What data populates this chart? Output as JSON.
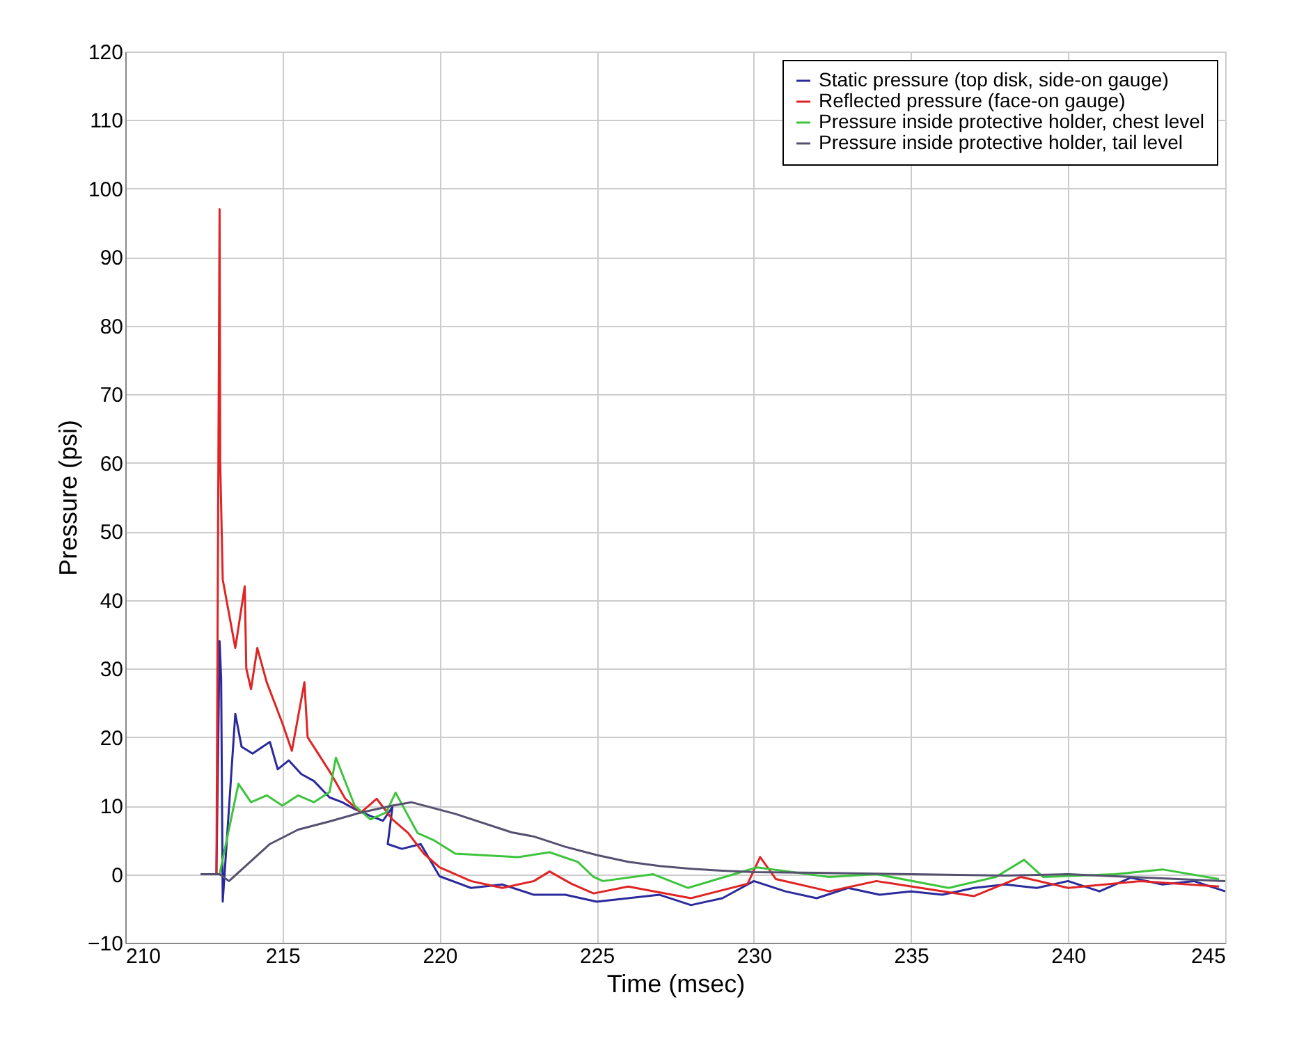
{
  "chart_data": {
    "type": "line",
    "xlabel": "Time (msec)",
    "ylabel": "Pressure (psi)",
    "xlim": [
      210,
      245
    ],
    "xticks": [
      210,
      215,
      220,
      225,
      230,
      235,
      240,
      245
    ],
    "ylim": [
      -10,
      120
    ],
    "yticks": [
      -10,
      0,
      10,
      20,
      30,
      40,
      50,
      60,
      70,
      80,
      90,
      100,
      110,
      120
    ],
    "grid": true,
    "legend": "top right",
    "line_style": "solid",
    "marker": "none",
    "series": [
      {
        "name": "Static pressure (top disk, side-on gauge)",
        "color": "#2a2a9c",
        "x": [
          212.4,
          212.9,
          213.0,
          213.05,
          213.1,
          213.5,
          213.7,
          214.05,
          214.6,
          214.85,
          215.2,
          215.6,
          216.0,
          216.5,
          216.9,
          217.3,
          217.8,
          218.2,
          218.5,
          218.35,
          218.8,
          219.4,
          220.0,
          221,
          222,
          223,
          224,
          225,
          226,
          227,
          228,
          229,
          230,
          231,
          232,
          233,
          234,
          235,
          236,
          237,
          238,
          239,
          240,
          241,
          242,
          243,
          244,
          245
        ],
        "values": [
          0,
          0,
          34,
          28.5,
          -4,
          23.4,
          18.6,
          17.6,
          19.3,
          15.3,
          16.6,
          14.6,
          13.6,
          11.2,
          10.5,
          9.5,
          8.5,
          7.8,
          9.8,
          4.4,
          3.7,
          4.4,
          -0.3,
          -2,
          -1.5,
          -3,
          -3,
          -4,
          -3.5,
          -3,
          -4.5,
          -3.5,
          -1,
          -2.5,
          -3.5,
          -2,
          -3,
          -2.5,
          -3,
          -2,
          -1.5,
          -2,
          -1,
          -2.5,
          -0.5,
          -1.5,
          -1,
          -2.5
        ]
      },
      {
        "name": "Reflected pressure (face-on gauge)",
        "color": "#e02424",
        "x": [
          212.9,
          213.0,
          213.02,
          213.1,
          213.5,
          213.8,
          213.85,
          214.0,
          214.2,
          214.5,
          215.0,
          215.3,
          215.7,
          215.8,
          216.5,
          217.0,
          217.5,
          218.0,
          218.5,
          219.0,
          219.5,
          220.0,
          221.0,
          222.0,
          223.0,
          223.5,
          224.2,
          224.9,
          226.0,
          228.0,
          229.8,
          230.2,
          230.7,
          232.4,
          233.9,
          237.0,
          238.5,
          240.0,
          242.3,
          244.8
        ],
        "values": [
          0,
          97,
          60,
          43,
          33,
          42,
          30,
          27,
          33,
          28,
          22,
          18,
          28,
          20,
          15,
          11,
          9,
          11,
          8,
          6,
          3,
          1,
          -1,
          -2,
          -1,
          0.4,
          -1.4,
          -2.8,
          -1.8,
          -3.5,
          -1.4,
          2.5,
          -0.7,
          -2.5,
          -1,
          -3.2,
          -0.4,
          -2,
          -1,
          -1.8
        ]
      },
      {
        "name": "Pressure inside protective holder, chest level",
        "color": "#3cc43c",
        "x": [
          213.0,
          213.6,
          214.0,
          214.5,
          215.0,
          215.5,
          216.0,
          216.5,
          216.7,
          217.3,
          217.8,
          218.3,
          218.6,
          219.3,
          219.8,
          220.5,
          222.5,
          223.5,
          224.4,
          224.9,
          225.2,
          226.8,
          227.9,
          230.1,
          232.4,
          233.9,
          236.2,
          237.7,
          238.6,
          239.2,
          241.5,
          243.0,
          244.8
        ],
        "values": [
          0,
          13.2,
          10.5,
          11.5,
          10,
          11.5,
          10.5,
          12,
          17,
          10,
          8,
          9,
          11.9,
          6,
          5,
          3,
          2.5,
          3.2,
          1.8,
          -0.4,
          -1,
          0,
          -2,
          1,
          -0.4,
          0,
          -2,
          -0.4,
          2.1,
          -0.4,
          0,
          0.7,
          -0.7
        ]
      },
      {
        "name": "Pressure inside protective holder, tail level",
        "color": "#565070",
        "x": [
          212.4,
          213.0,
          213.3,
          214.6,
          215.5,
          216.5,
          217.5,
          218.5,
          219.1,
          220.5,
          222.3,
          223.0,
          224.0,
          225.0,
          226.0,
          227.0,
          228.0,
          229.0,
          230.0,
          232.0,
          235.0,
          238.0,
          240.0,
          245.0
        ],
        "values": [
          0,
          0,
          -1,
          4.4,
          6.5,
          7.7,
          9,
          10,
          10.5,
          8.8,
          6.1,
          5.5,
          4,
          2.8,
          1.8,
          1.2,
          0.8,
          0.5,
          0.3,
          0.2,
          0,
          -0.2,
          0,
          -1
        ]
      }
    ]
  }
}
